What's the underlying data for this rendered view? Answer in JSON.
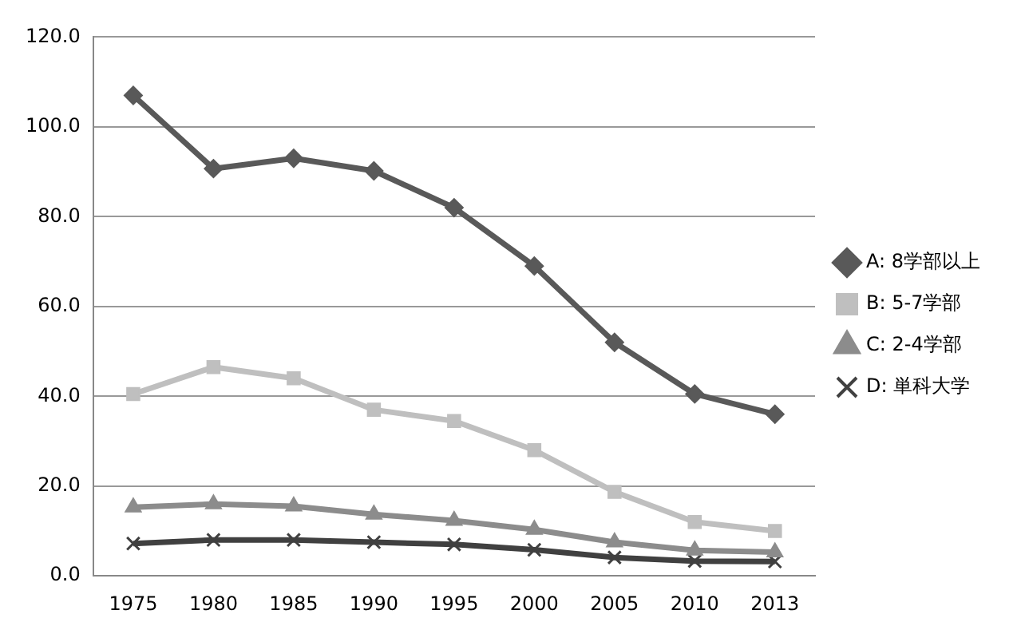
{
  "chart_data": {
    "type": "line",
    "categories": [
      "1975",
      "1980",
      "1985",
      "1990",
      "1995",
      "2000",
      "2005",
      "2010",
      "2013"
    ],
    "series": [
      {
        "name": "A: 8学部以上",
        "color": "#595959",
        "marker": "diamond",
        "values": [
          107,
          90.7,
          93,
          90.2,
          82,
          69,
          52,
          40.5,
          36
        ]
      },
      {
        "name": "B: 5-7学部",
        "color": "#bfbfbf",
        "marker": "square",
        "values": [
          40.5,
          46.5,
          44,
          37,
          34.5,
          28,
          18.7,
          12,
          10
        ]
      },
      {
        "name": "C: 2-4学部",
        "color": "#8c8c8c",
        "marker": "triangle",
        "values": [
          15.3,
          16,
          15.5,
          13.7,
          12.3,
          10.3,
          7.5,
          5.7,
          5.3
        ]
      },
      {
        "name": "D: 単科大学",
        "color": "#404040",
        "marker": "cross",
        "values": [
          7.2,
          8,
          8,
          7.5,
          7,
          5.8,
          4.1,
          3.3,
          3.2
        ]
      }
    ],
    "ylim": [
      0,
      120
    ],
    "yticks": [
      {
        "value": 0,
        "label": "0.0"
      },
      {
        "value": 20,
        "label": "20.0"
      },
      {
        "value": 40,
        "label": "40.0"
      },
      {
        "value": 60,
        "label": "60.0"
      },
      {
        "value": 80,
        "label": "80.0"
      },
      {
        "value": 100,
        "label": "100.0"
      },
      {
        "value": 120,
        "label": "120.0"
      }
    ],
    "grid": "y",
    "legend": "right"
  }
}
